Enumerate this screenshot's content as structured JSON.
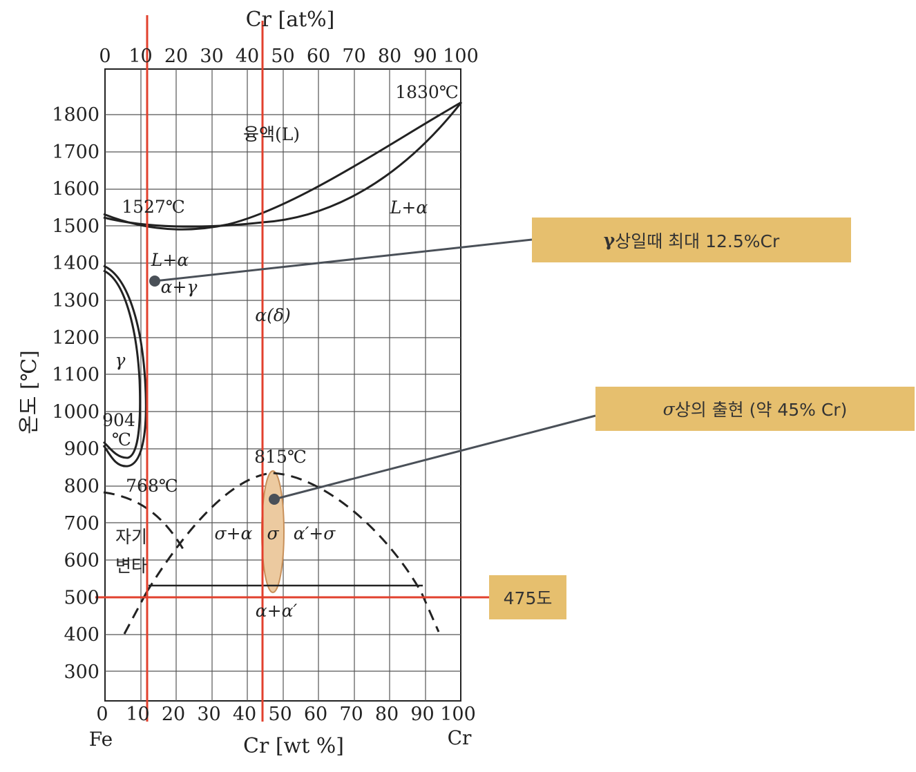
{
  "diagram": {
    "top_axis_title": "Cr [at%]",
    "bottom_axis_title": "Cr [wt %]",
    "y_axis_title": "온도 [℃]",
    "left_end_label": "Fe",
    "right_end_label": "Cr",
    "top_ticks": [
      "0",
      "10",
      "20",
      "30",
      "40",
      "50",
      "60",
      "70",
      "80",
      "90",
      "100"
    ],
    "bottom_ticks": [
      "0",
      "10",
      "20",
      "30",
      "40",
      "50",
      "60",
      "70",
      "80",
      "90",
      "100"
    ],
    "y_ticks": [
      "1800",
      "1700",
      "1600",
      "1500",
      "1400",
      "1300",
      "1200",
      "1100",
      "1000",
      "900",
      "800",
      "700",
      "600",
      "500",
      "400",
      "300"
    ],
    "labels": {
      "temp_1830": "1830℃",
      "liquid": "융액(L)",
      "temp_1527": "1527℃",
      "l_plus_alpha_right": "L+α",
      "l_plus_alpha_left": "L+α",
      "alpha_plus_gamma": "α+γ",
      "alpha_delta": "α(δ)",
      "gamma": "γ",
      "temp_904_a": "904",
      "temp_904_b": "℃",
      "temp_815": "815℃",
      "temp_768": "768℃",
      "sigma_plus_alpha": "σ+α",
      "sigma": "σ",
      "alpha_prime_plus_sigma": "α′+σ",
      "alpha_plus_alpha_prime": "α+α′",
      "magnetic_1": "자기",
      "magnetic_2": "변타"
    }
  },
  "callouts": {
    "gamma_max_prefix": "γ",
    "gamma_max": "상일때 최대 12.5%Cr",
    "sigma_prefix": "σ",
    "sigma_appearance": "상의 출현 (약 45% Cr)",
    "temp_475": "475도"
  },
  "colors": {
    "guide_line": "#e2402d",
    "callout_fill": "#e6bf6e",
    "sigma_region": "#eccaa0",
    "pointer": "#4a5058"
  }
}
